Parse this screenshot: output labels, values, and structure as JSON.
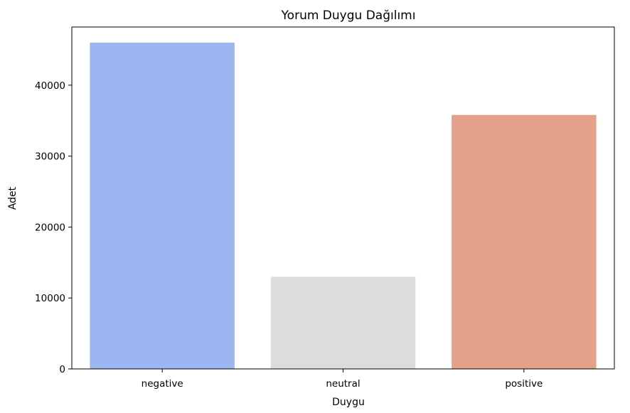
{
  "chart_data": {
    "type": "bar",
    "title": "Yorum Duygu Dağılımı",
    "xlabel": "Duygu",
    "ylabel": "Adet",
    "categories": [
      "negative",
      "neutral",
      "positive"
    ],
    "values": [
      46000,
      13000,
      35800
    ],
    "colors": [
      "#9bb6f0",
      "#dcdcdc",
      "#e4a089"
    ],
    "ylim": [
      0,
      48200
    ],
    "yticks": [
      0,
      10000,
      20000,
      30000,
      40000
    ],
    "grid": false,
    "legend": "none"
  }
}
